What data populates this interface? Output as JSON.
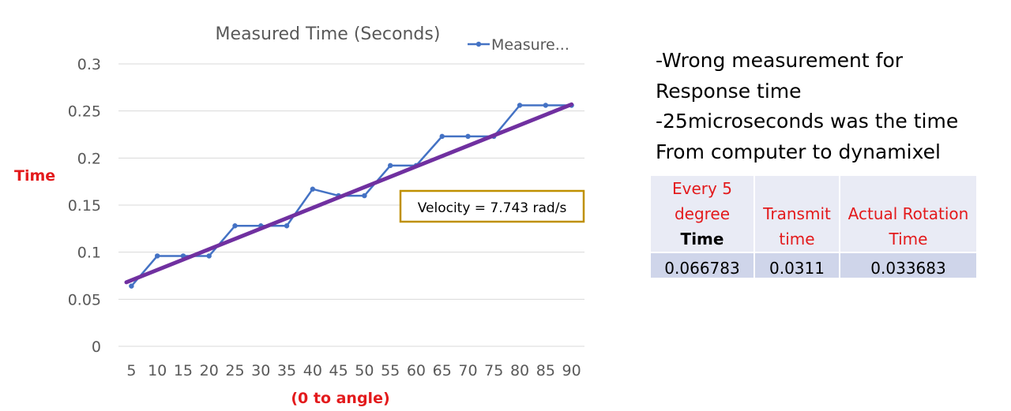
{
  "chart_data": {
    "type": "line",
    "title": "Measured Time (Seconds)",
    "ylabel": "Time",
    "xlabel": "(0 to angle)",
    "categories": [
      "5",
      "10",
      "15",
      "20",
      "25",
      "30",
      "35",
      "40",
      "45",
      "50",
      "55",
      "60",
      "65",
      "70",
      "75",
      "80",
      "85",
      "90"
    ],
    "yticks": [
      "0",
      "0.05",
      "0.1",
      "0.15",
      "0.2",
      "0.25",
      "0.3"
    ],
    "ylim": [
      0,
      0.3
    ],
    "grid": true,
    "legend": "top-right",
    "series": [
      {
        "name": "Measure...",
        "color": "#4472c4",
        "values": [
          0.064,
          0.096,
          0.096,
          0.096,
          0.128,
          0.128,
          0.128,
          0.167,
          0.16,
          0.16,
          0.192,
          0.192,
          0.223,
          0.223,
          0.223,
          0.256,
          0.256,
          0.256
        ]
      }
    ],
    "trendline": {
      "color": "#7030a0",
      "start": 0.068,
      "end": 0.257
    },
    "annotation": {
      "text": "Velocity = 7.743 rad/s",
      "border_color": "#bf9000"
    }
  },
  "notes": [
    "-Wrong measurement for",
    "Response time",
    "-25microseconds was the time",
    "From computer to dynamixel"
  ],
  "table": {
    "headers": [
      [
        "Every 5",
        "degree"
      ],
      [
        "Transmit",
        "time"
      ],
      [
        "Actual Rotation",
        "Time"
      ]
    ],
    "header_bold": "Time",
    "values": [
      "0.066783",
      "0.0311",
      "0.033683"
    ]
  }
}
